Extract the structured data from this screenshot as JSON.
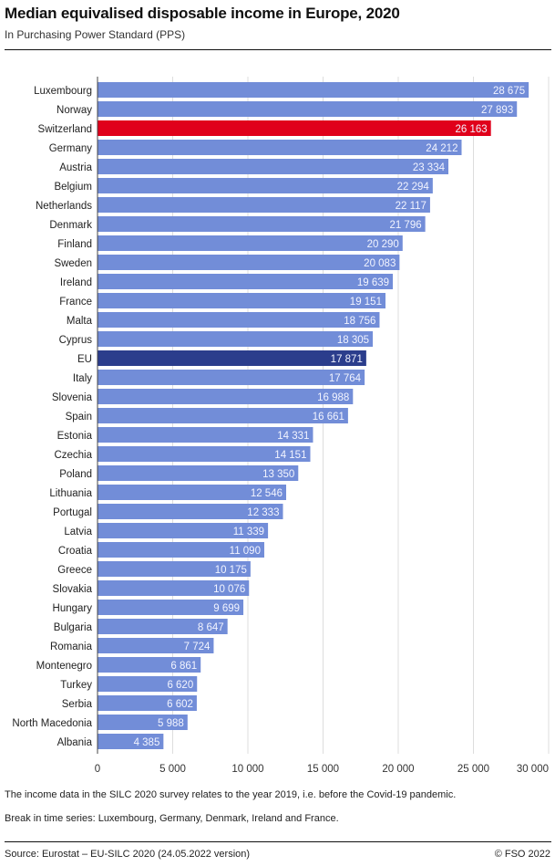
{
  "chart_data": {
    "type": "bar",
    "orientation": "horizontal",
    "title": "Median equivalised disposable income in Europe, 2020",
    "subtitle": "In Purchasing Power Standard (PPS)",
    "categories": [
      "Luxembourg",
      "Norway",
      "Switzerland",
      "Germany",
      "Austria",
      "Belgium",
      "Netherlands",
      "Denmark",
      "Finland",
      "Sweden",
      "Ireland",
      "France",
      "Malta",
      "Cyprus",
      "EU",
      "Italy",
      "Slovenia",
      "Spain",
      "Estonia",
      "Czechia",
      "Poland",
      "Lithuania",
      "Portugal",
      "Latvia",
      "Croatia",
      "Greece",
      "Slovakia",
      "Hungary",
      "Bulgaria",
      "Romania",
      "Montenegro",
      "Turkey",
      "Serbia",
      "North Macedonia",
      "Albania"
    ],
    "values": [
      28675,
      27893,
      26163,
      24212,
      23334,
      22294,
      22117,
      21796,
      20290,
      20083,
      19639,
      19151,
      18756,
      18305,
      17871,
      17764,
      16988,
      16661,
      14331,
      14151,
      13350,
      12546,
      12333,
      11339,
      11090,
      10175,
      10076,
      9699,
      8647,
      7724,
      6861,
      6620,
      6602,
      5988,
      4385
    ],
    "value_labels": [
      "28 675",
      "27 893",
      "26 163",
      "24 212",
      "23 334",
      "22 294",
      "22 117",
      "21 796",
      "20 290",
      "20 083",
      "19 639",
      "19 151",
      "18 756",
      "18 305",
      "17 871",
      "17 764",
      "16 988",
      "16 661",
      "14 331",
      "14 151",
      "13 350",
      "12 546",
      "12 333",
      "11 339",
      "11 090",
      "10 175",
      "10 076",
      "9 699",
      "8 647",
      "7 724",
      "6 861",
      "6 620",
      "6 602",
      "5 988",
      "4 385"
    ],
    "xlim": [
      0,
      30000
    ],
    "xticks": [
      0,
      5000,
      10000,
      15000,
      20000,
      25000,
      30000
    ],
    "xtick_labels": [
      "0",
      "5 000",
      "10 000",
      "15 000",
      "20 000",
      "25 000",
      "30 000"
    ],
    "grid": true,
    "colors": {
      "default": "#728dd8",
      "highlight": "#e0001b",
      "eu": "#2b3d8c",
      "grid": "#dddddd"
    },
    "highlight": {
      "Switzerland": "highlight",
      "EU": "eu"
    }
  },
  "notes": [
    "The income data in the SILC 2020 survey relates to the year 2019, i.e. before the Covid-19 pandemic.",
    "Break in time series: Luxembourg, Germany, Denmark, Ireland and France."
  ],
  "footer": {
    "source": "Source: Eurostat – EU-SILC 2020 (24.05.2022 version)",
    "copyright": "© FSO 2022"
  }
}
